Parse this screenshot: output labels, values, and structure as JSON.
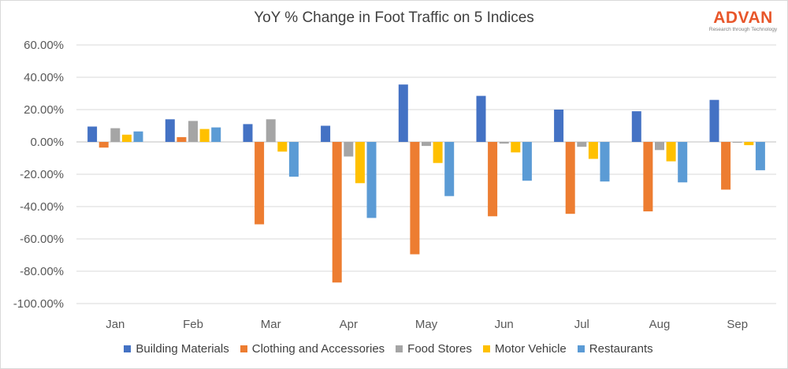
{
  "header": {
    "title": "YoY % Change in Foot Traffic on 5 Indices"
  },
  "logo": {
    "name": "ADVAN",
    "tagline": "Research through Technology"
  },
  "chart_data": {
    "type": "bar",
    "title": "YoY % Change in Foot Traffic on 5 Indices",
    "xlabel": "",
    "ylabel": "",
    "categories": [
      "Jan",
      "Feb",
      "Mar",
      "Apr",
      "May",
      "Jun",
      "Jul",
      "Aug",
      "Sep"
    ],
    "ylim": [
      -100,
      60
    ],
    "yticks": [
      60,
      40,
      20,
      0,
      -20,
      -40,
      -60,
      -80,
      -100
    ],
    "ytick_labels": [
      "60.00%",
      "40.00%",
      "20.00%",
      "0.00%",
      "-20.00%",
      "-40.00%",
      "-60.00%",
      "-80.00%",
      "-100.00%"
    ],
    "grid": true,
    "legend_position": "bottom",
    "series": [
      {
        "name": "Building Materials",
        "color": "#4472c4",
        "values": [
          9.5,
          14,
          11,
          10,
          35.5,
          28.5,
          20,
          19,
          26
        ]
      },
      {
        "name": "Clothing and Accessories",
        "color": "#ed7d31",
        "values": [
          -3.5,
          3,
          -51,
          -87,
          -69.5,
          -46,
          -44.5,
          -43,
          -29.5
        ]
      },
      {
        "name": "Food Stores",
        "color": "#a5a5a5",
        "values": [
          8.5,
          13,
          14,
          -9,
          -2.5,
          -1,
          -3,
          -5,
          -0.5
        ]
      },
      {
        "name": "Motor Vehicle",
        "color": "#ffc000",
        "values": [
          4.5,
          8,
          -6,
          -25.5,
          -13,
          -6.5,
          -10.5,
          -12,
          -2
        ]
      },
      {
        "name": "Restaurants",
        "color": "#5b9bd5",
        "values": [
          6.5,
          9,
          -21.5,
          -47,
          -33.5,
          -24,
          -24.5,
          -25,
          -17.5
        ]
      }
    ]
  }
}
